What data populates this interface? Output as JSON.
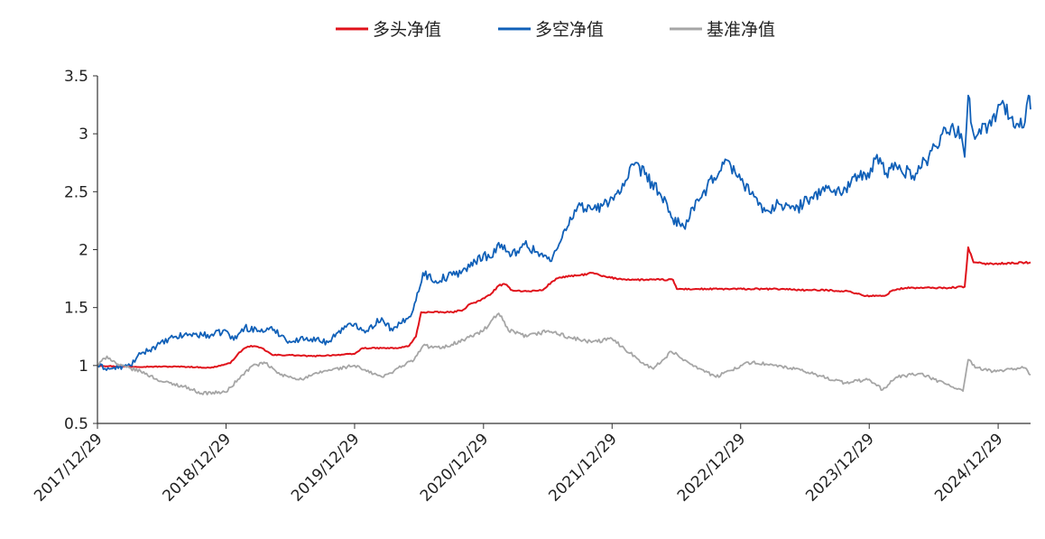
{
  "chart_data": {
    "type": "line",
    "title": "",
    "xlabel": "",
    "ylabel": "",
    "ylim": [
      0.5,
      3.5
    ],
    "yticks": [
      "0.5",
      "1",
      "1.5",
      "2",
      "2.5",
      "3",
      "3.5"
    ],
    "xlim": [
      "2017-12-29",
      "2025-03-31"
    ],
    "xticks": [
      "2017/12/29",
      "2018/12/29",
      "2019/12/29",
      "2020/12/29",
      "2021/12/29",
      "2022/12/29",
      "2023/12/29",
      "2024/12/29"
    ],
    "legend": {
      "position": "top-center"
    },
    "grid": false,
    "series": [
      {
        "name": "多头净值",
        "color": "#e0121b",
        "points": [
          [
            "2017-12-29",
            1.0
          ],
          [
            "2018-03-01",
            0.99
          ],
          [
            "2018-06-01",
            0.99
          ],
          [
            "2018-09-01",
            0.99
          ],
          [
            "2018-11-15",
            0.98
          ],
          [
            "2019-01-10",
            1.02
          ],
          [
            "2019-02-01",
            1.1
          ],
          [
            "2019-02-20",
            1.15
          ],
          [
            "2019-03-10",
            1.17
          ],
          [
            "2019-04-10",
            1.15
          ],
          [
            "2019-05-10",
            1.09
          ],
          [
            "2019-07-01",
            1.09
          ],
          [
            "2019-09-01",
            1.08
          ],
          [
            "2019-11-01",
            1.09
          ],
          [
            "2019-12-29",
            1.1
          ],
          [
            "2020-01-20",
            1.15
          ],
          [
            "2020-03-15",
            1.15
          ],
          [
            "2020-05-01",
            1.15
          ],
          [
            "2020-06-01",
            1.17
          ],
          [
            "2020-06-20",
            1.25
          ],
          [
            "2020-07-05",
            1.46
          ],
          [
            "2020-08-01",
            1.46
          ],
          [
            "2020-09-01",
            1.46
          ],
          [
            "2020-10-01",
            1.46
          ],
          [
            "2020-11-01",
            1.48
          ],
          [
            "2020-11-20",
            1.53
          ],
          [
            "2020-12-20",
            1.56
          ],
          [
            "2021-01-20",
            1.62
          ],
          [
            "2021-02-10",
            1.69
          ],
          [
            "2021-03-01",
            1.7
          ],
          [
            "2021-03-20",
            1.65
          ],
          [
            "2021-05-01",
            1.64
          ],
          [
            "2021-06-15",
            1.65
          ],
          [
            "2021-07-10",
            1.72
          ],
          [
            "2021-08-01",
            1.76
          ],
          [
            "2021-09-01",
            1.77
          ],
          [
            "2021-10-01",
            1.78
          ],
          [
            "2021-11-05",
            1.8
          ],
          [
            "2021-12-01",
            1.77
          ],
          [
            "2022-01-10",
            1.75
          ],
          [
            "2022-03-01",
            1.74
          ],
          [
            "2022-05-01",
            1.74
          ],
          [
            "2022-06-20",
            1.74
          ],
          [
            "2022-07-01",
            1.66
          ],
          [
            "2022-09-01",
            1.66
          ],
          [
            "2022-12-01",
            1.66
          ],
          [
            "2023-03-01",
            1.66
          ],
          [
            "2023-05-01",
            1.66
          ],
          [
            "2023-07-01",
            1.65
          ],
          [
            "2023-09-01",
            1.65
          ],
          [
            "2023-11-01",
            1.64
          ],
          [
            "2023-12-20",
            1.6
          ],
          [
            "2024-02-10",
            1.6
          ],
          [
            "2024-03-05",
            1.65
          ],
          [
            "2024-04-10",
            1.67
          ],
          [
            "2024-06-01",
            1.67
          ],
          [
            "2024-08-01",
            1.67
          ],
          [
            "2024-09-25",
            1.68
          ],
          [
            "2024-10-05",
            2.02
          ],
          [
            "2024-10-20",
            1.89
          ],
          [
            "2024-11-15",
            1.88
          ],
          [
            "2025-01-01",
            1.88
          ],
          [
            "2025-03-31",
            1.89
          ]
        ]
      },
      {
        "name": "多空净值",
        "color": "#1060b8",
        "points": [
          [
            "2017-12-29",
            1.0
          ],
          [
            "2018-02-01",
            0.97
          ],
          [
            "2018-04-01",
            1.0
          ],
          [
            "2018-05-01",
            1.1
          ],
          [
            "2018-06-15",
            1.17
          ],
          [
            "2018-08-01",
            1.24
          ],
          [
            "2018-09-15",
            1.27
          ],
          [
            "2018-11-15",
            1.26
          ],
          [
            "2018-12-29",
            1.3
          ],
          [
            "2019-01-20",
            1.22
          ],
          [
            "2019-02-20",
            1.33
          ],
          [
            "2019-04-01",
            1.3
          ],
          [
            "2019-05-15",
            1.31
          ],
          [
            "2019-07-01",
            1.2
          ],
          [
            "2019-08-15",
            1.24
          ],
          [
            "2019-10-15",
            1.2
          ],
          [
            "2019-11-15",
            1.3
          ],
          [
            "2019-12-29",
            1.36
          ],
          [
            "2020-02-01",
            1.3
          ],
          [
            "2020-03-15",
            1.41
          ],
          [
            "2020-04-15",
            1.3
          ],
          [
            "2020-06-01",
            1.42
          ],
          [
            "2020-06-20",
            1.56
          ],
          [
            "2020-07-10",
            1.8
          ],
          [
            "2020-08-15",
            1.73
          ],
          [
            "2020-10-01",
            1.78
          ],
          [
            "2020-11-20",
            1.85
          ],
          [
            "2020-12-29",
            1.96
          ],
          [
            "2021-01-20",
            1.93
          ],
          [
            "2021-02-10",
            2.06
          ],
          [
            "2021-03-15",
            1.94
          ],
          [
            "2021-04-20",
            2.05
          ],
          [
            "2021-06-01",
            1.98
          ],
          [
            "2021-07-10",
            1.9
          ],
          [
            "2021-08-01",
            2.05
          ],
          [
            "2021-09-01",
            2.28
          ],
          [
            "2021-10-01",
            2.38
          ],
          [
            "2021-11-15",
            2.34
          ],
          [
            "2021-12-29",
            2.45
          ],
          [
            "2022-02-01",
            2.55
          ],
          [
            "2022-03-01",
            2.73
          ],
          [
            "2022-04-01",
            2.65
          ],
          [
            "2022-05-15",
            2.48
          ],
          [
            "2022-06-15",
            2.28
          ],
          [
            "2022-07-20",
            2.2
          ],
          [
            "2022-09-01",
            2.42
          ],
          [
            "2022-10-15",
            2.62
          ],
          [
            "2022-11-15",
            2.78
          ],
          [
            "2022-12-29",
            2.6
          ],
          [
            "2023-02-01",
            2.5
          ],
          [
            "2023-03-01",
            2.32
          ],
          [
            "2023-04-15",
            2.4
          ],
          [
            "2023-06-01",
            2.34
          ],
          [
            "2023-07-15",
            2.45
          ],
          [
            "2023-09-01",
            2.53
          ],
          [
            "2023-10-15",
            2.49
          ],
          [
            "2023-11-15",
            2.63
          ],
          [
            "2023-12-29",
            2.62
          ],
          [
            "2024-01-20",
            2.82
          ],
          [
            "2024-02-15",
            2.66
          ],
          [
            "2024-03-15",
            2.72
          ],
          [
            "2024-05-01",
            2.64
          ],
          [
            "2024-06-15",
            2.8
          ],
          [
            "2024-08-01",
            3.05
          ],
          [
            "2024-09-15",
            3.0
          ],
          [
            "2024-09-25",
            2.8
          ],
          [
            "2024-10-05",
            3.33
          ],
          [
            "2024-10-20",
            3.0
          ],
          [
            "2024-12-01",
            3.08
          ],
          [
            "2025-01-15",
            3.25
          ],
          [
            "2025-02-15",
            3.05
          ],
          [
            "2025-03-15",
            3.1
          ],
          [
            "2025-03-25",
            3.33
          ],
          [
            "2025-03-31",
            3.21
          ]
        ]
      },
      {
        "name": "基准净值",
        "color": "#a6a6a6",
        "points": [
          [
            "2017-12-29",
            1.0
          ],
          [
            "2018-01-25",
            1.08
          ],
          [
            "2018-03-01",
            1.0
          ],
          [
            "2018-05-01",
            0.95
          ],
          [
            "2018-07-01",
            0.86
          ],
          [
            "2018-09-01",
            0.82
          ],
          [
            "2018-10-20",
            0.76
          ],
          [
            "2018-12-29",
            0.77
          ],
          [
            "2019-02-01",
            0.88
          ],
          [
            "2019-03-15",
            1.0
          ],
          [
            "2019-04-20",
            1.02
          ],
          [
            "2019-06-01",
            0.92
          ],
          [
            "2019-08-01",
            0.88
          ],
          [
            "2019-10-01",
            0.95
          ],
          [
            "2019-12-29",
            1.0
          ],
          [
            "2020-02-01",
            0.95
          ],
          [
            "2020-03-20",
            0.9
          ],
          [
            "2020-05-01",
            0.98
          ],
          [
            "2020-06-15",
            1.05
          ],
          [
            "2020-07-10",
            1.17
          ],
          [
            "2020-09-01",
            1.15
          ],
          [
            "2020-11-01",
            1.22
          ],
          [
            "2020-12-29",
            1.3
          ],
          [
            "2021-02-10",
            1.45
          ],
          [
            "2021-03-10",
            1.3
          ],
          [
            "2021-05-01",
            1.25
          ],
          [
            "2021-07-01",
            1.3
          ],
          [
            "2021-09-01",
            1.24
          ],
          [
            "2021-11-01",
            1.2
          ],
          [
            "2021-12-29",
            1.23
          ],
          [
            "2022-02-01",
            1.15
          ],
          [
            "2022-03-15",
            1.05
          ],
          [
            "2022-04-25",
            0.97
          ],
          [
            "2022-06-15",
            1.12
          ],
          [
            "2022-08-01",
            1.03
          ],
          [
            "2022-10-20",
            0.9
          ],
          [
            "2022-12-29",
            1.0
          ],
          [
            "2023-02-01",
            1.03
          ],
          [
            "2023-04-01",
            1.0
          ],
          [
            "2023-06-01",
            0.97
          ],
          [
            "2023-08-01",
            0.92
          ],
          [
            "2023-10-20",
            0.85
          ],
          [
            "2023-12-29",
            0.88
          ],
          [
            "2024-02-05",
            0.79
          ],
          [
            "2024-03-15",
            0.9
          ],
          [
            "2024-05-20",
            0.93
          ],
          [
            "2024-07-01",
            0.88
          ],
          [
            "2024-09-20",
            0.78
          ],
          [
            "2024-10-05",
            1.05
          ],
          [
            "2024-10-25",
            0.98
          ],
          [
            "2024-12-15",
            0.95
          ],
          [
            "2025-02-01",
            0.97
          ],
          [
            "2025-03-15",
            0.98
          ],
          [
            "2025-03-31",
            0.92
          ]
        ]
      }
    ]
  }
}
